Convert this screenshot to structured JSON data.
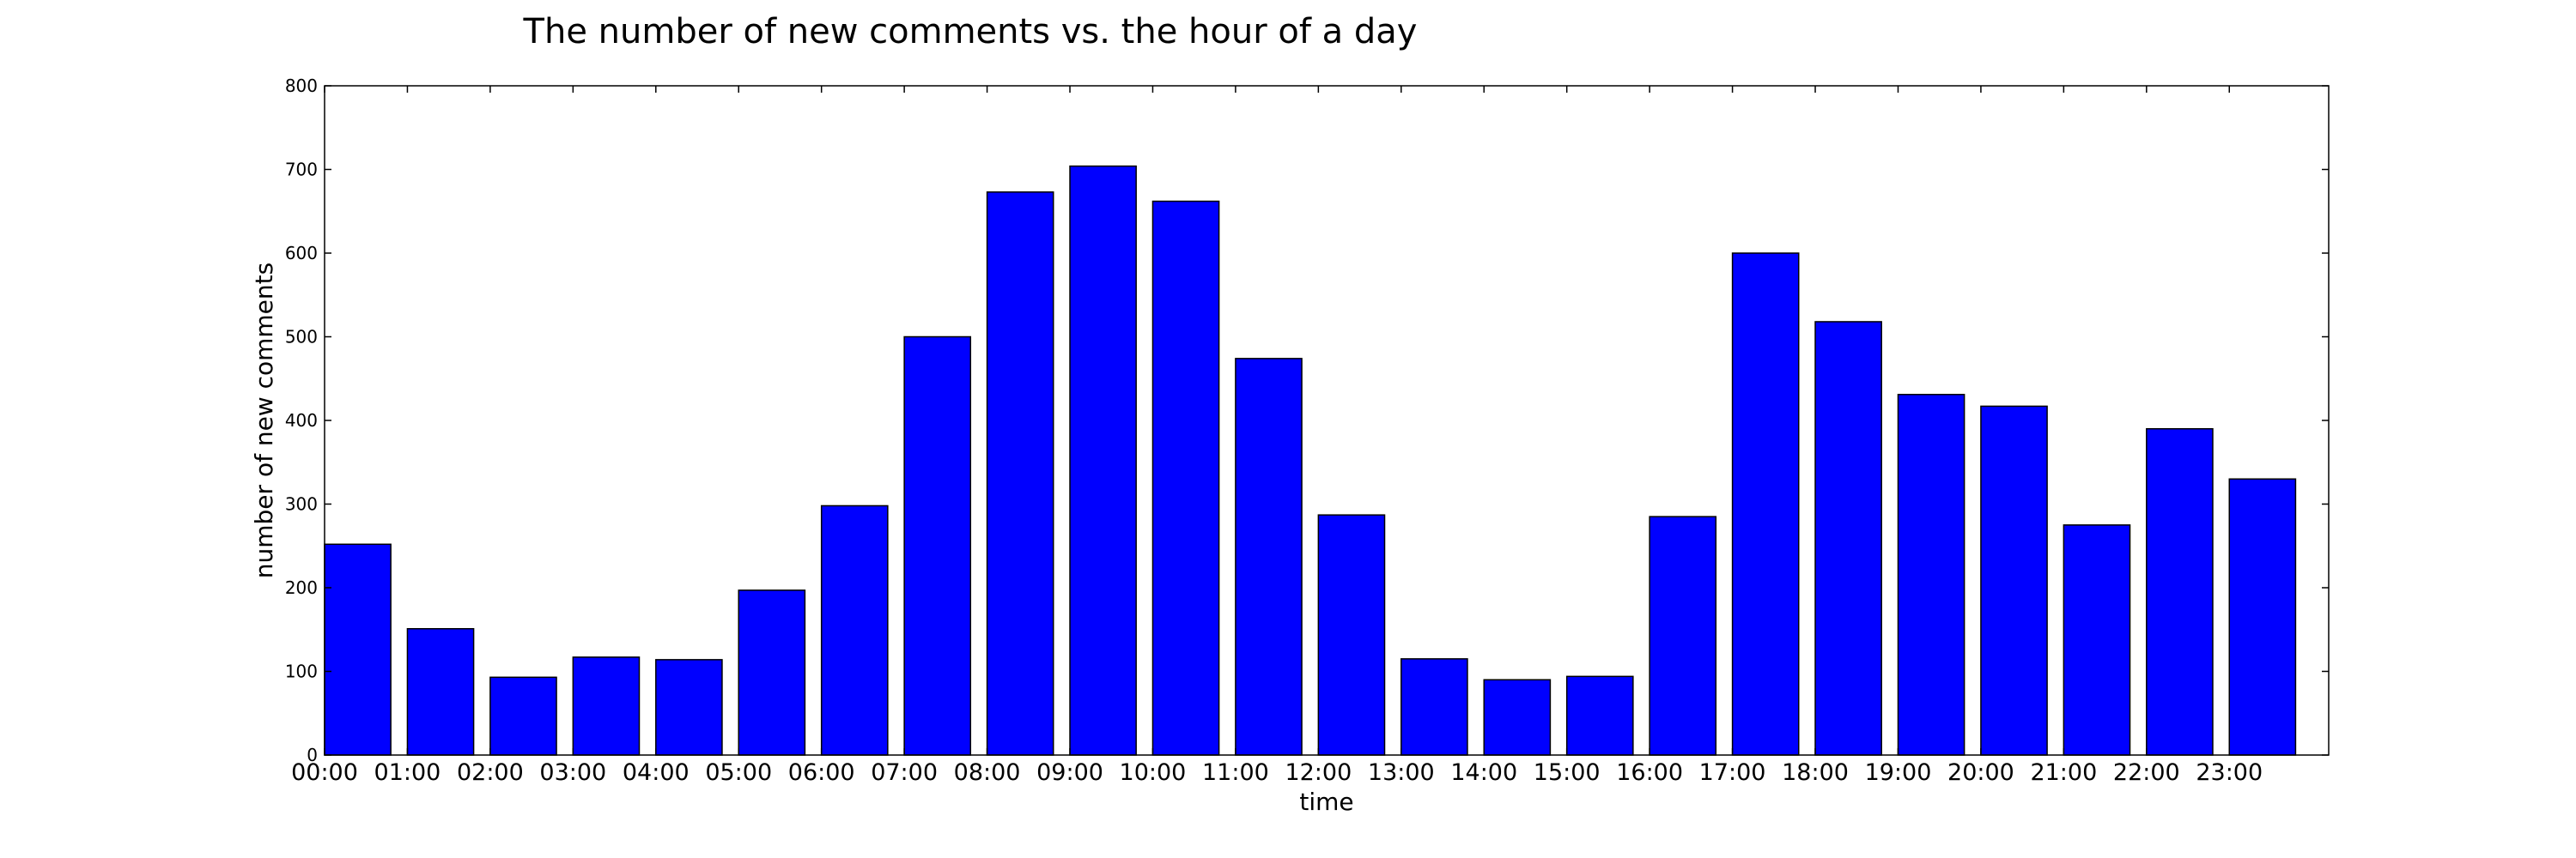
{
  "chart_data": {
    "type": "bar",
    "title": "The number of new comments vs. the hour of a day",
    "xlabel": "time",
    "ylabel": "number of new comments",
    "categories": [
      "00:00",
      "01:00",
      "02:00",
      "03:00",
      "04:00",
      "05:00",
      "06:00",
      "07:00",
      "08:00",
      "09:00",
      "10:00",
      "11:00",
      "12:00",
      "13:00",
      "14:00",
      "15:00",
      "16:00",
      "17:00",
      "18:00",
      "19:00",
      "20:00",
      "21:00",
      "22:00",
      "23:00"
    ],
    "values": [
      252,
      151,
      93,
      117,
      114,
      197,
      298,
      500,
      673,
      704,
      662,
      474,
      287,
      115,
      90,
      94,
      285,
      600,
      518,
      431,
      417,
      275,
      390,
      330
    ],
    "ylim": [
      0,
      800
    ],
    "yticks": [
      0,
      100,
      200,
      300,
      400,
      500,
      600,
      700,
      800
    ],
    "bar_color": "#0000ff",
    "edge_color": "#000000",
    "grid": false,
    "legend": "none"
  }
}
